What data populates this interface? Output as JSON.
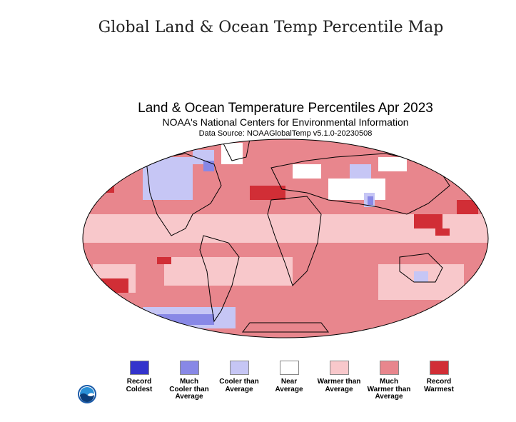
{
  "page": {
    "heading": "Global Land & Ocean Temp Percentile Map"
  },
  "map": {
    "title": "Land & Ocean Temperature Percentiles Apr 2023",
    "subtitle": "NOAA's National Centers for Environmental Information",
    "source": "Data Source: NOAAGlobalTemp v5.1.0-20230508"
  },
  "legend": {
    "items": [
      {
        "label": "Record\nColdest",
        "color": "#3333cc"
      },
      {
        "label": "Much\nCooler than\nAverage",
        "color": "#8888e6"
      },
      {
        "label": "Cooler than\nAverage",
        "color": "#c6c6f5"
      },
      {
        "label": "Near\nAverage",
        "color": "#ffffff"
      },
      {
        "label": "Warmer than\nAverage",
        "color": "#f8c8cb"
      },
      {
        "label": "Much\nWarmer than\nAverage",
        "color": "#e8868d"
      },
      {
        "label": "Record\nWarmest",
        "color": "#d12e36"
      }
    ]
  },
  "logo": {
    "icon": "noaa-logo-icon"
  }
}
